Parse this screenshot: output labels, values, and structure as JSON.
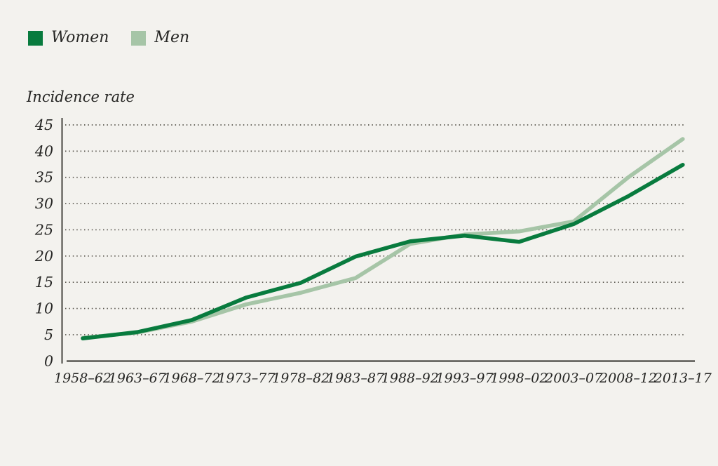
{
  "legend": {
    "items": [
      {
        "label": "Women",
        "color": "#087b3e"
      },
      {
        "label": "Men",
        "color": "#a6c5a7"
      }
    ]
  },
  "axis_title": "Incidence rate",
  "chart_data": {
    "type": "line",
    "title": "",
    "ylabel": "Incidence rate",
    "xlabel": "",
    "ylim": [
      0,
      45
    ],
    "yticks": [
      0,
      5,
      10,
      15,
      20,
      25,
      30,
      35,
      40,
      45
    ],
    "grid": "horizontal-dotted",
    "legend_position": "top-left",
    "categories": [
      "1958–62",
      "1963–67",
      "1968–72",
      "1973–77",
      "1978–82",
      "1983–87",
      "1988–92",
      "1993–97",
      "1998–02",
      "2003–07",
      "2008–12",
      "2013–17"
    ],
    "series": [
      {
        "name": "Men",
        "color": "#a6c5a7",
        "values": [
          4.4,
          5.4,
          7.5,
          10.8,
          13.0,
          15.8,
          22.3,
          24.1,
          24.7,
          26.6,
          35.0,
          42.3
        ]
      },
      {
        "name": "Women",
        "color": "#087b3e",
        "values": [
          4.3,
          5.5,
          7.8,
          12.1,
          14.9,
          19.9,
          22.8,
          23.9,
          22.7,
          26.1,
          31.4,
          37.4
        ]
      }
    ]
  },
  "style_colors": {
    "background": "#f3f2ee",
    "axis": "#45443f",
    "grid": "#57544c",
    "text": "#262624"
  }
}
